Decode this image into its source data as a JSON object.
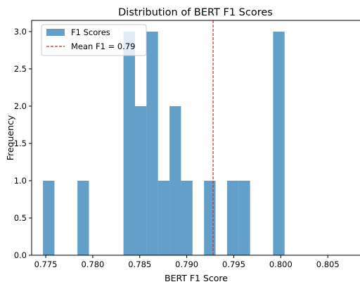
{
  "chart_data": {
    "type": "histogram",
    "title": "Distribution of BERT F1 Scores",
    "xlabel": "BERT F1 Score",
    "ylabel": "Frequency",
    "xlim": [
      0.7735,
      0.8085
    ],
    "ylim": [
      0,
      3.15
    ],
    "x_ticks": [
      0.775,
      0.78,
      0.785,
      0.79,
      0.795,
      0.8,
      0.805
    ],
    "x_tick_labels": [
      "0.775",
      "0.780",
      "0.785",
      "0.790",
      "0.795",
      "0.800",
      "0.805"
    ],
    "y_ticks": [
      0.0,
      0.5,
      1.0,
      1.5,
      2.0,
      2.5,
      3.0
    ],
    "y_tick_labels": [
      "0.0",
      "0.5",
      "1.0",
      "1.5",
      "2.0",
      "2.5",
      "3.0"
    ],
    "bins": {
      "start": 0.7747,
      "width": 0.001224,
      "counts": [
        1,
        0,
        0,
        1,
        0,
        0,
        0,
        3,
        2,
        3,
        1,
        2,
        1,
        0,
        1,
        0,
        1,
        1,
        0,
        0,
        3
      ]
    },
    "mean_line": {
      "value": 0.7928,
      "label": "Mean F1 = 0.79",
      "color": "#d62728"
    },
    "bar_color": "#1f77b4",
    "bar_alpha": 0.7,
    "legend": {
      "placement": "top-left",
      "entries": [
        "F1 Scores",
        "Mean F1 = 0.79"
      ]
    },
    "grid": false
  }
}
